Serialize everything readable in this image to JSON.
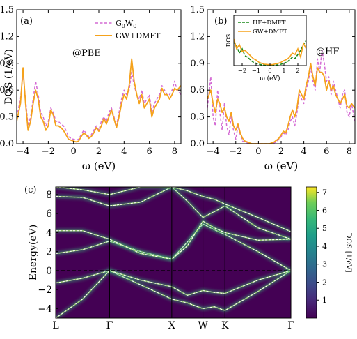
{
  "chart_data": [
    {
      "type": "line",
      "panel_label": "(a)",
      "annotation": "@PBE",
      "ylabel": "DOS (1/eV)",
      "xlabel": "ω (eV)",
      "xlim": [
        -4.5,
        8.5
      ],
      "ylim": [
        0.0,
        1.5
      ],
      "xticks": [
        -4,
        -2,
        0,
        2,
        4,
        6,
        8
      ],
      "yticks": [
        0.0,
        0.3,
        0.6,
        0.9,
        1.2,
        1.5
      ],
      "xtick_labels": [
        "−4",
        "−2",
        "0",
        "2",
        "4",
        "6",
        "8"
      ],
      "ytick_labels": [
        "0.0",
        "0.3",
        "0.6",
        "0.9",
        "1.2",
        "1.5"
      ],
      "legend": {
        "position": "top-right",
        "entries": [
          "G0W0",
          "GW+DMFT"
        ]
      },
      "series": [
        {
          "name": "G0W0",
          "style": "dashed",
          "color": "#d46ad4",
          "x": [
            -4.5,
            -4.2,
            -4.0,
            -3.8,
            -3.6,
            -3.4,
            -3.2,
            -3.0,
            -2.8,
            -2.6,
            -2.4,
            -2.2,
            -2.0,
            -1.8,
            -1.6,
            -1.4,
            -1.2,
            -1.0,
            -0.8,
            -0.6,
            -0.4,
            -0.2,
            0.0,
            0.2,
            0.4,
            0.6,
            0.8,
            1.0,
            1.2,
            1.4,
            1.6,
            1.8,
            2.0,
            2.2,
            2.4,
            2.6,
            2.8,
            3.0,
            3.2,
            3.4,
            3.6,
            3.8,
            4.0,
            4.2,
            4.4,
            4.6,
            4.8,
            5.0,
            5.2,
            5.4,
            5.6,
            5.8,
            6.0,
            6.2,
            6.4,
            6.6,
            6.8,
            7.0,
            7.2,
            7.4,
            7.6,
            7.8,
            8.0,
            8.2,
            8.5
          ],
          "y": [
            0.3,
            0.5,
            0.8,
            0.5,
            0.2,
            0.3,
            0.5,
            0.7,
            0.55,
            0.35,
            0.3,
            0.2,
            0.25,
            0.4,
            0.35,
            0.25,
            0.25,
            0.22,
            0.2,
            0.15,
            0.08,
            0.06,
            0.05,
            0.04,
            0.05,
            0.1,
            0.15,
            0.12,
            0.08,
            0.1,
            0.15,
            0.2,
            0.15,
            0.25,
            0.3,
            0.25,
            0.35,
            0.4,
            0.3,
            0.2,
            0.35,
            0.5,
            0.6,
            0.55,
            0.6,
            0.8,
            0.65,
            0.55,
            0.5,
            0.6,
            0.45,
            0.5,
            0.55,
            0.35,
            0.45,
            0.5,
            0.55,
            0.65,
            0.6,
            0.55,
            0.55,
            0.6,
            0.7,
            0.6,
            0.55
          ]
        },
        {
          "name": "GW+DMFT",
          "style": "solid",
          "color": "#f5a21b",
          "x": [
            -4.5,
            -4.2,
            -4.0,
            -3.8,
            -3.6,
            -3.4,
            -3.2,
            -3.0,
            -2.8,
            -2.6,
            -2.4,
            -2.2,
            -2.0,
            -1.8,
            -1.6,
            -1.4,
            -1.2,
            -1.0,
            -0.8,
            -0.6,
            -0.4,
            -0.2,
            0.0,
            0.2,
            0.4,
            0.6,
            0.8,
            1.0,
            1.2,
            1.4,
            1.6,
            1.8,
            2.0,
            2.2,
            2.4,
            2.6,
            2.8,
            3.0,
            3.2,
            3.4,
            3.6,
            3.8,
            4.0,
            4.2,
            4.4,
            4.6,
            4.8,
            5.0,
            5.2,
            5.4,
            5.6,
            5.8,
            6.0,
            6.2,
            6.4,
            6.6,
            6.8,
            7.0,
            7.2,
            7.4,
            7.6,
            7.8,
            8.0,
            8.2,
            8.5
          ],
          "y": [
            0.25,
            0.45,
            0.85,
            0.45,
            0.15,
            0.25,
            0.45,
            0.6,
            0.5,
            0.3,
            0.25,
            0.15,
            0.2,
            0.38,
            0.32,
            0.2,
            0.2,
            0.18,
            0.15,
            0.1,
            0.05,
            0.04,
            0.03,
            0.02,
            0.03,
            0.08,
            0.12,
            0.1,
            0.06,
            0.08,
            0.12,
            0.18,
            0.14,
            0.2,
            0.28,
            0.22,
            0.3,
            0.38,
            0.28,
            0.18,
            0.3,
            0.45,
            0.55,
            0.5,
            0.65,
            0.95,
            0.7,
            0.55,
            0.45,
            0.55,
            0.4,
            0.45,
            0.5,
            0.3,
            0.4,
            0.45,
            0.5,
            0.62,
            0.55,
            0.55,
            0.5,
            0.55,
            0.62,
            0.6,
            0.65
          ]
        }
      ]
    },
    {
      "type": "line",
      "panel_label": "(b)",
      "annotation": "@HF",
      "xlabel": "ω (eV)",
      "xlim": [
        -4.5,
        8.5
      ],
      "ylim": [
        0.0,
        1.5
      ],
      "xticks": [
        -4,
        -2,
        0,
        2,
        4,
        6,
        8
      ],
      "yticks": [
        0.0,
        0.3,
        0.6,
        0.9,
        1.2,
        1.5
      ],
      "xtick_labels": [
        "−4",
        "−2",
        "0",
        "2",
        "4",
        "6",
        "8"
      ],
      "ytick_labels": [
        "0.0",
        "0.3",
        "0.6",
        "0.9",
        "1.2",
        "1.5"
      ],
      "series": [
        {
          "style": "dashed",
          "color": "#d46ad4",
          "x": [
            -4.5,
            -4.2,
            -4.0,
            -3.8,
            -3.6,
            -3.4,
            -3.2,
            -3.0,
            -2.8,
            -2.6,
            -2.4,
            -2.2,
            -2.0,
            -1.8,
            -1.6,
            -1.4,
            -1.2,
            -1.0,
            -0.8,
            -0.6,
            -0.4,
            -0.2,
            0.0,
            0.2,
            0.4,
            0.6,
            0.8,
            1.0,
            1.2,
            1.4,
            1.6,
            1.8,
            2.0,
            2.2,
            2.4,
            2.6,
            2.8,
            3.0,
            3.2,
            3.4,
            3.6,
            3.8,
            4.0,
            4.2,
            4.4,
            4.6,
            4.8,
            5.0,
            5.2,
            5.4,
            5.6,
            5.8,
            6.0,
            6.2,
            6.4,
            6.6,
            6.8,
            7.0,
            7.2,
            7.4,
            7.6,
            7.8,
            8.0,
            8.2,
            8.5
          ],
          "y": [
            0.4,
            0.75,
            0.3,
            0.2,
            0.6,
            0.35,
            0.15,
            0.45,
            0.2,
            0.1,
            0.3,
            0.15,
            0.05,
            0.2,
            0.1,
            0.03,
            0.02,
            0.01,
            0.01,
            0.0,
            0.0,
            0.0,
            0.0,
            0.0,
            0.0,
            0.0,
            0.0,
            0.0,
            0.0,
            0.01,
            0.02,
            0.05,
            0.08,
            0.12,
            0.1,
            0.15,
            0.25,
            0.3,
            0.2,
            0.35,
            0.55,
            0.5,
            0.45,
            0.6,
            0.7,
            0.85,
            0.7,
            0.6,
            0.95,
            0.8,
            1.05,
            0.9,
            0.7,
            0.75,
            0.55,
            0.7,
            0.6,
            0.5,
            0.4,
            0.55,
            0.6,
            0.35,
            0.3,
            0.45,
            0.25
          ]
        },
        {
          "style": "solid",
          "color": "#f5a21b",
          "x": [
            -4.5,
            -4.2,
            -4.0,
            -3.8,
            -3.6,
            -3.4,
            -3.2,
            -3.0,
            -2.8,
            -2.6,
            -2.4,
            -2.2,
            -2.0,
            -1.8,
            -1.6,
            -1.4,
            -1.2,
            -1.0,
            -0.8,
            -0.6,
            -0.4,
            -0.2,
            0.0,
            0.2,
            0.4,
            0.6,
            0.8,
            1.0,
            1.2,
            1.4,
            1.6,
            1.8,
            2.0,
            2.2,
            2.4,
            2.6,
            2.8,
            3.0,
            3.2,
            3.4,
            3.6,
            3.8,
            4.0,
            4.2,
            4.4,
            4.6,
            4.8,
            5.0,
            5.2,
            5.4,
            5.6,
            5.8,
            6.0,
            6.2,
            6.4,
            6.6,
            6.8,
            7.0,
            7.2,
            7.4,
            7.6,
            7.8,
            8.0,
            8.2,
            8.5
          ],
          "y": [
            0.5,
            0.6,
            0.45,
            0.35,
            0.5,
            0.45,
            0.35,
            0.4,
            0.3,
            0.25,
            0.35,
            0.2,
            0.15,
            0.22,
            0.12,
            0.06,
            0.03,
            0.02,
            0.01,
            0.0,
            0.0,
            0.0,
            0.0,
            0.0,
            0.0,
            0.0,
            0.0,
            0.0,
            0.01,
            0.02,
            0.04,
            0.06,
            0.1,
            0.14,
            0.12,
            0.2,
            0.3,
            0.38,
            0.3,
            0.4,
            0.6,
            0.55,
            0.5,
            0.65,
            0.75,
            0.9,
            0.75,
            0.65,
            0.85,
            0.8,
            0.8,
            0.75,
            0.6,
            0.7,
            0.6,
            0.65,
            0.55,
            0.5,
            0.45,
            0.5,
            0.55,
            0.42,
            0.4,
            0.45,
            0.4
          ]
        }
      ],
      "inset": {
        "xlabel": "ω (eV)",
        "ylabel": "DOS",
        "xlim": [
          -2.6,
          2.6
        ],
        "xticks": [
          -2,
          -1,
          0,
          1,
          2
        ],
        "xtick_labels": [
          "−2",
          "−1",
          "0",
          "1",
          "2"
        ],
        "legend": {
          "position": "top",
          "entries": [
            "HF+DMFT",
            "GW+DMFT"
          ]
        },
        "series": [
          {
            "name": "HF+DMFT",
            "style": "dashed",
            "color": "#1a8a1a",
            "x": [
              -2.6,
              -2.4,
              -2.2,
              -2.0,
              -1.8,
              -1.6,
              -1.4,
              -1.2,
              -1.0,
              -0.8,
              -0.6,
              -0.4,
              -0.2,
              0.0,
              0.2,
              0.4,
              0.6,
              0.8,
              1.0,
              1.2,
              1.4,
              1.6,
              1.8,
              2.0,
              2.2,
              2.4,
              2.6
            ],
            "y": [
              0.85,
              0.7,
              0.45,
              0.6,
              0.35,
              0.3,
              0.2,
              0.12,
              0.08,
              0.05,
              0.03,
              0.02,
              0.01,
              0.01,
              0.01,
              0.02,
              0.03,
              0.05,
              0.08,
              0.12,
              0.2,
              0.3,
              0.25,
              0.4,
              0.55,
              0.75,
              0.9
            ]
          },
          {
            "name": "GW+DMFT",
            "style": "solid",
            "color": "#f5a21b",
            "x": [
              -2.6,
              -2.4,
              -2.2,
              -2.0,
              -1.8,
              -1.6,
              -1.4,
              -1.2,
              -1.0,
              -0.8,
              -0.6,
              -0.4,
              -0.2,
              0.0,
              0.2,
              0.4,
              0.6,
              0.8,
              1.0,
              1.2,
              1.4,
              1.6,
              1.8,
              2.0,
              2.2,
              2.4,
              2.6
            ],
            "y": [
              0.95,
              0.6,
              0.75,
              0.5,
              0.55,
              0.45,
              0.35,
              0.25,
              0.2,
              0.12,
              0.08,
              0.05,
              0.04,
              0.03,
              0.04,
              0.06,
              0.08,
              0.12,
              0.18,
              0.22,
              0.3,
              0.45,
              0.4,
              0.6,
              0.3,
              0.8,
              0.6
            ]
          }
        ]
      }
    },
    {
      "type": "heatmap",
      "panel_label": "(c)",
      "ylabel": "Energy(eV)",
      "ylim": [
        -5.0,
        8.8
      ],
      "yticks": [
        -4,
        -2,
        0,
        2,
        4,
        6,
        8
      ],
      "ytick_labels": [
        "−4",
        "−2",
        "0",
        "2",
        "4",
        "6",
        "8"
      ],
      "k_labels": [
        "L",
        "Γ",
        "X",
        "W",
        "K",
        "Γ"
      ],
      "k_positions": [
        0,
        0.866,
        1.866,
        2.366,
        2.72,
        3.78
      ],
      "colorbar": {
        "label": "DOS [1/eV]",
        "range": [
          0,
          7.3
        ],
        "ticks": [
          1,
          2,
          3,
          4,
          5,
          6,
          7
        ],
        "colormap": "viridis"
      },
      "fermi_level": 0,
      "bands": [
        {
          "k": [
            0,
            0.433,
            0.866,
            1.366,
            1.866,
            2.116,
            2.366,
            2.55,
            2.72,
            3.25,
            3.78
          ],
          "e": [
            -1.3,
            -0.8,
            0.0,
            -1.5,
            -3.0,
            -3.4,
            -4.0,
            -3.8,
            -4.2,
            -2.2,
            0.0
          ]
        },
        {
          "k": [
            0,
            0.433,
            0.866,
            1.366,
            1.866,
            2.116,
            2.366,
            2.55,
            2.72,
            3.25,
            3.78
          ],
          "e": [
            -5.0,
            -3.0,
            0.0,
            -1.0,
            -1.7,
            -2.6,
            -2.1,
            -2.3,
            -2.4,
            -1.0,
            0.0
          ]
        },
        {
          "k": [
            0,
            0.433,
            0.866,
            1.366,
            1.866,
            2.116,
            2.366,
            2.55,
            2.72,
            3.25,
            3.78
          ],
          "e": [
            1.8,
            2.2,
            3.1,
            2.0,
            1.2,
            3.0,
            4.9,
            4.3,
            3.8,
            2.0,
            0.0
          ]
        },
        {
          "k": [
            0,
            0.433,
            0.866,
            1.366,
            1.866,
            2.116,
            2.366,
            2.55,
            2.72,
            3.25,
            3.78
          ],
          "e": [
            4.2,
            4.2,
            3.3,
            1.8,
            1.2,
            2.6,
            5.2,
            4.5,
            4.0,
            3.2,
            3.3
          ]
        },
        {
          "k": [
            0,
            0.433,
            0.866,
            1.366,
            1.866,
            2.116,
            2.366,
            2.55,
            2.72,
            3.25,
            3.78
          ],
          "e": [
            7.8,
            7.7,
            6.8,
            7.2,
            8.8,
            7.3,
            5.6,
            6.2,
            6.8,
            4.5,
            3.3
          ]
        },
        {
          "k": [
            0,
            0.433,
            0.866,
            1.366,
            1.866,
            2.116,
            2.366,
            2.55,
            2.72,
            3.25,
            3.78
          ],
          "e": [
            8.8,
            8.5,
            8.0,
            8.8,
            8.8,
            8.4,
            7.8,
            7.5,
            7.0,
            5.6,
            4.1
          ]
        }
      ]
    }
  ],
  "colors": {
    "g0w0": "#d46ad4",
    "gwdmft": "#f5a21b",
    "hfdmft": "#1a8a1a",
    "heat_bg": "#440154"
  }
}
